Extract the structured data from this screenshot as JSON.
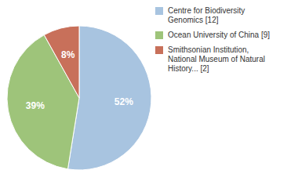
{
  "chart_data": {
    "type": "pie",
    "categories": [
      "Centre for Biodiversity\nGenomics [12]",
      "Ocean University of China [9]",
      "Smithsonian Institution,\nNational Museum of Natural\nHistory... [2]"
    ],
    "values": [
      52,
      39,
      8
    ],
    "value_labels": [
      "52%",
      "39%",
      "8%"
    ],
    "colors": [
      "#a8c4e0",
      "#9ec47a",
      "#c8705a"
    ],
    "data_labels": true,
    "legend": "right"
  }
}
